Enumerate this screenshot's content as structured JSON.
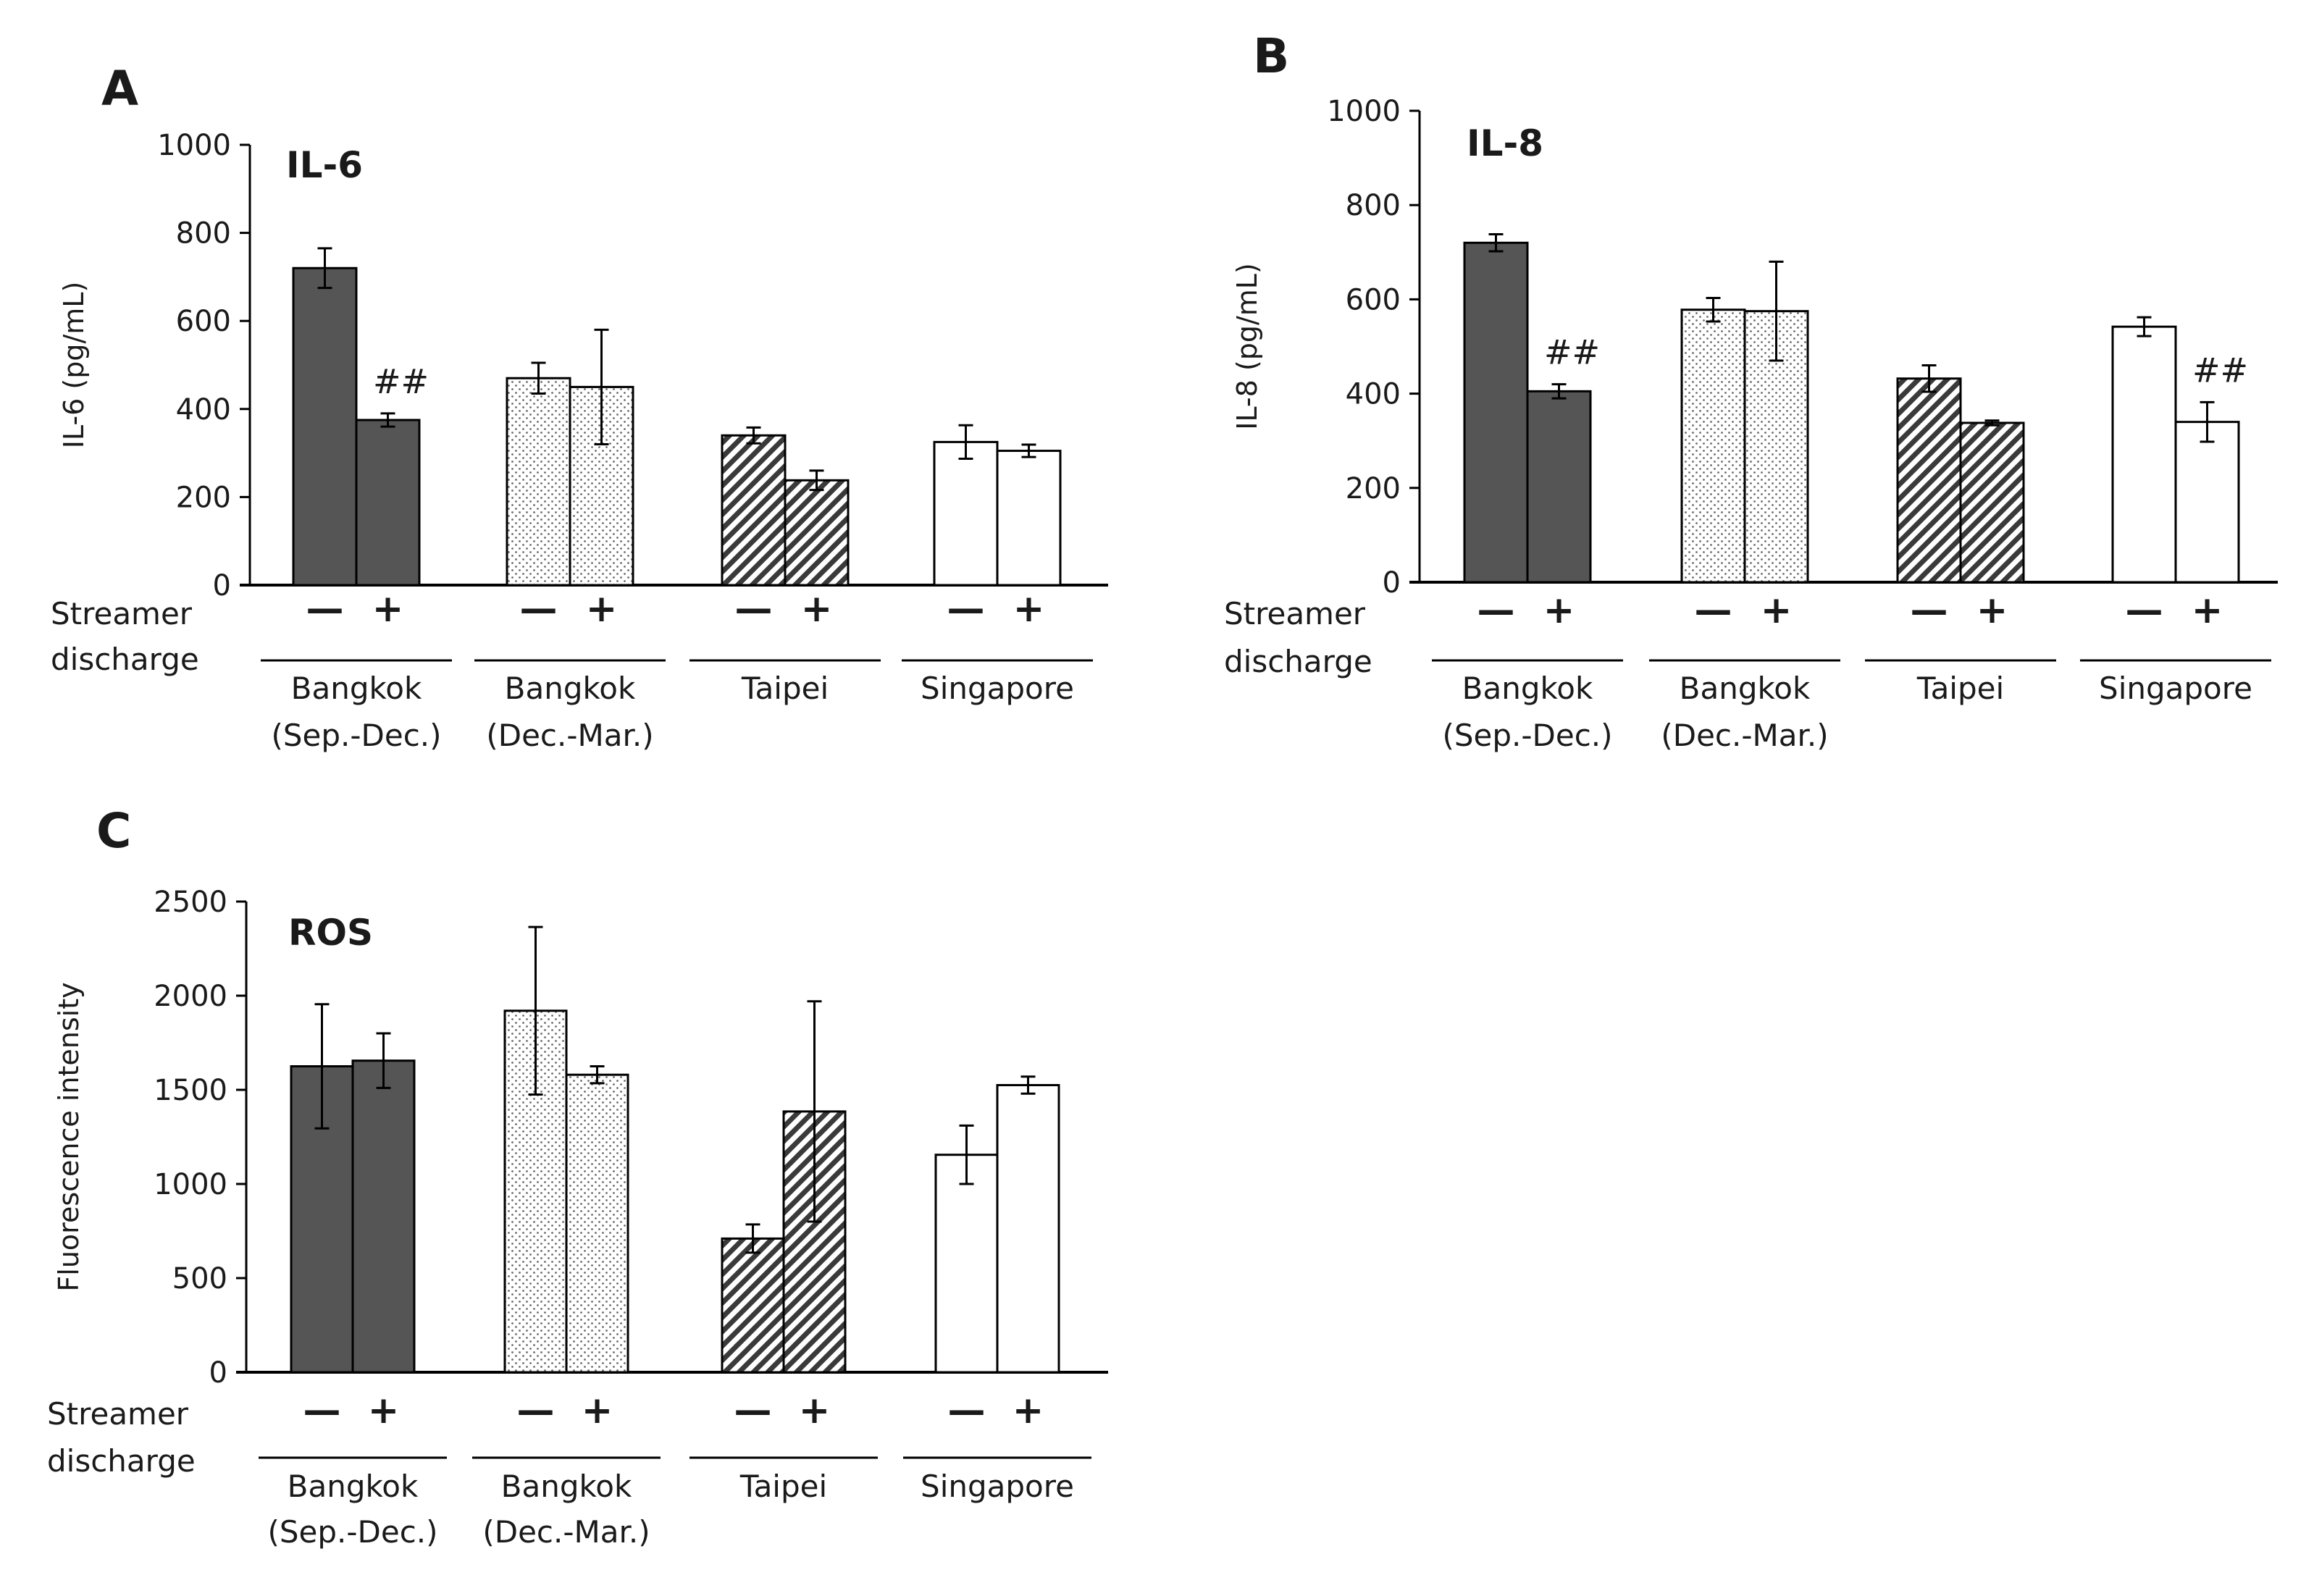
{
  "patterns": {
    "Bangkok (Sep.-Dec.)": "solid-dark",
    "Bangkok (Dec.-Mar.)": "dotted",
    "Taipei": "diagonal-hatch",
    "Singapore": "white"
  },
  "colors": {
    "dark_bar": "#555555",
    "axis": "#000000",
    "fill_light": "#ffffff"
  },
  "chart_data": [
    {
      "id": "A",
      "panel_letter": "A",
      "type": "bar",
      "title": "IL-6",
      "ylabel": "IL-6 (pg/mL)",
      "ylim": [
        0,
        1000
      ],
      "yticks": [
        "0",
        "200",
        "400",
        "600",
        "800",
        "1000"
      ],
      "ytick_values": [
        0,
        200,
        400,
        600,
        800,
        1000
      ],
      "side_label": [
        "Streamer",
        "discharge"
      ],
      "signs": [
        "—",
        "+"
      ],
      "groups": [
        {
          "label": [
            "Bangkok",
            "(Sep.-Dec.)"
          ],
          "pattern": "solid-dark",
          "values": [
            720,
            375
          ],
          "errors": [
            45,
            15
          ],
          "annotation": [
            "",
            "##"
          ]
        },
        {
          "label": [
            "Bangkok",
            "(Dec.-Mar.)"
          ],
          "pattern": "dotted",
          "values": [
            470,
            450
          ],
          "errors": [
            35,
            130
          ],
          "annotation": [
            "",
            ""
          ]
        },
        {
          "label": [
            "Taipei",
            ""
          ],
          "pattern": "diagonal-hatch",
          "values": [
            340,
            238
          ],
          "errors": [
            18,
            22
          ],
          "annotation": [
            "",
            ""
          ]
        },
        {
          "label": [
            "Singapore",
            ""
          ],
          "pattern": "white",
          "values": [
            325,
            305
          ],
          "errors": [
            38,
            14
          ],
          "annotation": [
            "",
            ""
          ]
        }
      ]
    },
    {
      "id": "B",
      "panel_letter": "B",
      "type": "bar",
      "title": "IL-8",
      "ylabel": "IL-8 (pg/mL)",
      "ylim": [
        0,
        1000
      ],
      "yticks": [
        "0",
        "200",
        "400",
        "600",
        "800",
        "1000"
      ],
      "ytick_values": [
        0,
        200,
        400,
        600,
        800,
        1000
      ],
      "side_label": [
        "Streamer",
        "discharge"
      ],
      "signs": [
        "—",
        "+"
      ],
      "groups": [
        {
          "label": [
            "Bangkok",
            "(Sep.-Dec.)"
          ],
          "pattern": "solid-dark",
          "values": [
            720,
            405
          ],
          "errors": [
            18,
            15
          ],
          "annotation": [
            "",
            "##"
          ]
        },
        {
          "label": [
            "Bangkok",
            "(Dec.-Mar.)"
          ],
          "pattern": "dotted",
          "values": [
            578,
            575
          ],
          "errors": [
            25,
            105
          ],
          "annotation": [
            "",
            ""
          ]
        },
        {
          "label": [
            "Taipei",
            ""
          ],
          "pattern": "diagonal-hatch",
          "values": [
            432,
            338
          ],
          "errors": [
            28,
            5
          ],
          "annotation": [
            "",
            ""
          ]
        },
        {
          "label": [
            "Singapore",
            ""
          ],
          "pattern": "white",
          "values": [
            542,
            340
          ],
          "errors": [
            20,
            42
          ],
          "annotation": [
            "",
            "##"
          ]
        }
      ]
    },
    {
      "id": "C",
      "panel_letter": "C",
      "type": "bar",
      "title": "ROS",
      "ylabel": "Fluorescence intensity",
      "ylim": [
        0,
        2500
      ],
      "yticks": [
        "0",
        "500",
        "1000",
        "1500",
        "2000",
        "2500"
      ],
      "ytick_values": [
        0,
        500,
        1000,
        1500,
        2000,
        2500
      ],
      "side_label": [
        "Streamer",
        "discharge"
      ],
      "signs": [
        "—",
        "+"
      ],
      "groups": [
        {
          "label": [
            "Bangkok",
            "(Sep.-Dec.)"
          ],
          "pattern": "solid-dark",
          "values": [
            1625,
            1655
          ],
          "errors": [
            330,
            145
          ],
          "annotation": [
            "",
            ""
          ]
        },
        {
          "label": [
            "Bangkok",
            "(Dec.-Mar.)"
          ],
          "pattern": "dotted",
          "values": [
            1920,
            1580
          ],
          "errors": [
            445,
            45
          ],
          "annotation": [
            "",
            ""
          ]
        },
        {
          "label": [
            "Taipei",
            ""
          ],
          "pattern": "diagonal-hatch",
          "values": [
            710,
            1385
          ],
          "errors": [
            75,
            585
          ],
          "annotation": [
            "",
            ""
          ]
        },
        {
          "label": [
            "Singapore",
            ""
          ],
          "pattern": "white",
          "values": [
            1155,
            1525
          ],
          "errors": [
            155,
            45
          ],
          "annotation": [
            "",
            ""
          ]
        }
      ]
    }
  ]
}
